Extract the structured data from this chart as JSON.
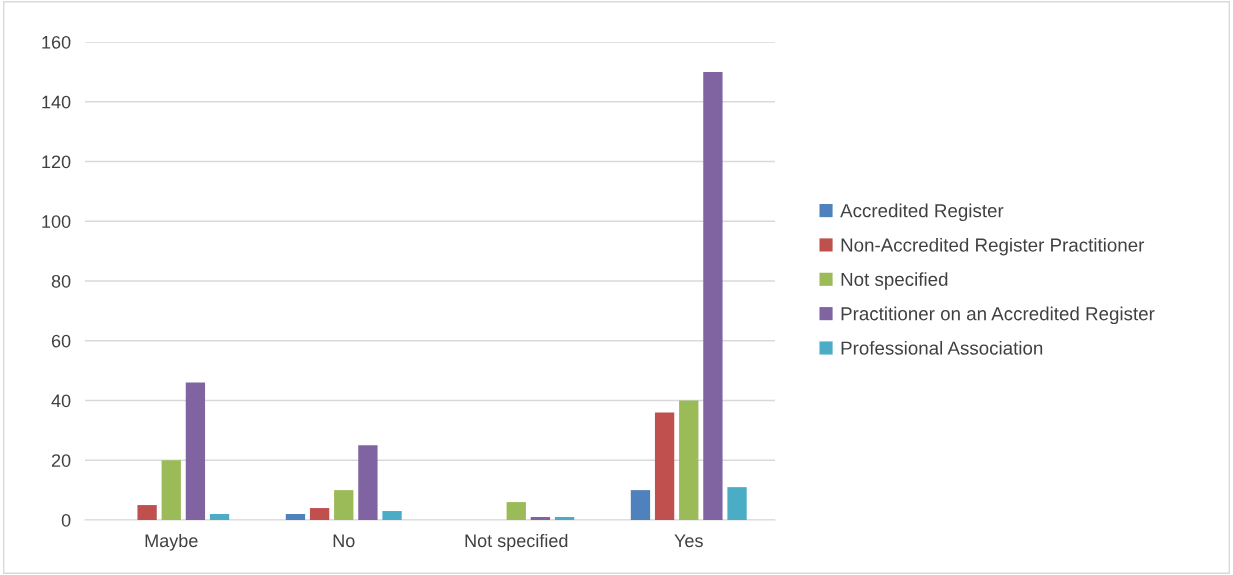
{
  "chart_data": {
    "type": "bar",
    "categories": [
      "Maybe",
      "No",
      "Not specified",
      "Yes"
    ],
    "series": [
      {
        "name": "Accredited Register",
        "color": "#4f81bd",
        "values": [
          0,
          2,
          0,
          10
        ]
      },
      {
        "name": "Non-Accredited Register Practitioner",
        "color": "#c0504d",
        "values": [
          5,
          4,
          0,
          36
        ]
      },
      {
        "name": "Not specified",
        "color": "#9bbb59",
        "values": [
          20,
          10,
          6,
          40
        ]
      },
      {
        "name": "Practitioner on an Accredited Register",
        "color": "#8064a2",
        "values": [
          46,
          25,
          1,
          150
        ]
      },
      {
        "name": "Professional Association",
        "color": "#4bacc6",
        "values": [
          2,
          3,
          1,
          11
        ]
      }
    ],
    "ylim": [
      0,
      160
    ],
    "yticks": [
      0,
      20,
      40,
      60,
      80,
      100,
      120,
      140,
      160
    ],
    "grid": "y",
    "legend": "right"
  }
}
